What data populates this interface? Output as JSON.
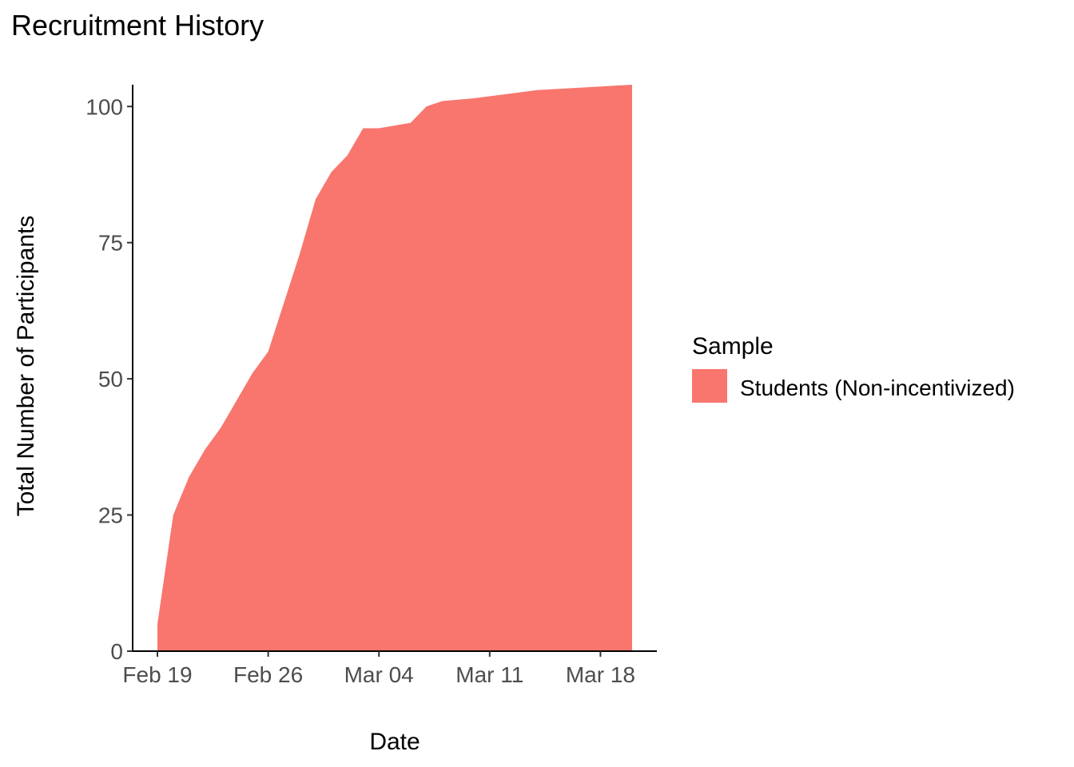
{
  "chart_data": {
    "type": "area",
    "title": "Recruitment History",
    "xlabel": "Date",
    "ylabel": "Total Number of Participants",
    "x_ticks": [
      "Feb 19",
      "Feb 26",
      "Mar 04",
      "Mar 11",
      "Mar 18"
    ],
    "y_ticks": [
      0,
      25,
      50,
      75,
      100
    ],
    "xlim": [
      "2024-02-18",
      "2024-03-21"
    ],
    "ylim": [
      0,
      104
    ],
    "grid": false,
    "legend": {
      "title": "Sample",
      "position": "right"
    },
    "series": [
      {
        "name": "Students (Non-incentivized)",
        "color": "#F8766D",
        "points": [
          {
            "x": "2024-02-19",
            "y": 5
          },
          {
            "x": "2024-02-20",
            "y": 25
          },
          {
            "x": "2024-02-21",
            "y": 32
          },
          {
            "x": "2024-02-22",
            "y": 37
          },
          {
            "x": "2024-02-23",
            "y": 41
          },
          {
            "x": "2024-02-24",
            "y": 46
          },
          {
            "x": "2024-02-25",
            "y": 51
          },
          {
            "x": "2024-02-26",
            "y": 55
          },
          {
            "x": "2024-02-27",
            "y": 64
          },
          {
            "x": "2024-02-28",
            "y": 73
          },
          {
            "x": "2024-02-29",
            "y": 83
          },
          {
            "x": "2024-03-01",
            "y": 88
          },
          {
            "x": "2024-03-02",
            "y": 91
          },
          {
            "x": "2024-03-03",
            "y": 96
          },
          {
            "x": "2024-03-04",
            "y": 96
          },
          {
            "x": "2024-03-05",
            "y": 96.5
          },
          {
            "x": "2024-03-06",
            "y": 97
          },
          {
            "x": "2024-03-07",
            "y": 100
          },
          {
            "x": "2024-03-08",
            "y": 101
          },
          {
            "x": "2024-03-10",
            "y": 101.5
          },
          {
            "x": "2024-03-14",
            "y": 103
          },
          {
            "x": "2024-03-20",
            "y": 104
          }
        ]
      }
    ]
  }
}
